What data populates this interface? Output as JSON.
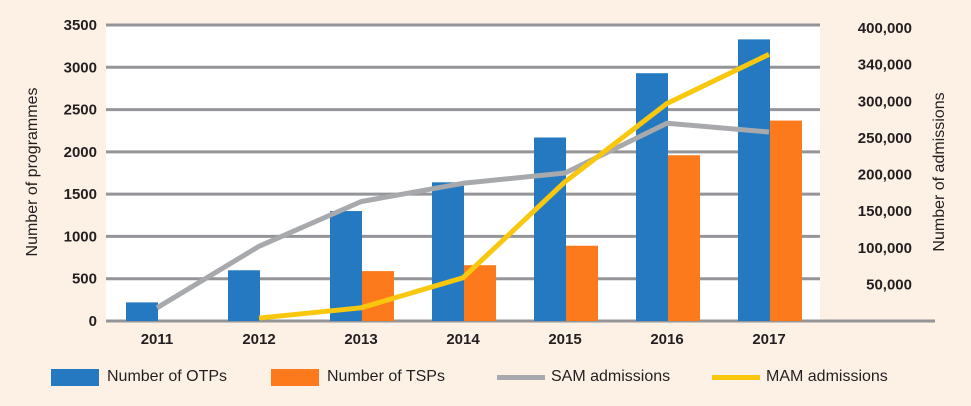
{
  "chart_data": {
    "type": "bar",
    "categories": [
      "2011",
      "2012",
      "2013",
      "2014",
      "2015",
      "2016",
      "2017"
    ],
    "series": [
      {
        "name": "Number of OTPs",
        "type": "bar",
        "axis": "left",
        "color": "#2479c0",
        "values": [
          220,
          600,
          1300,
          1640,
          2170,
          2930,
          3330
        ]
      },
      {
        "name": "Number of TSPs",
        "type": "bar",
        "axis": "left",
        "color": "#fc7a1b",
        "values": [
          null,
          null,
          590,
          660,
          890,
          1960,
          2370
        ]
      },
      {
        "name": "SAM admissions",
        "type": "line",
        "axis": "right",
        "color": "#a7a9ac",
        "values": [
          18000,
          102000,
          163000,
          188000,
          202000,
          270000,
          258000
        ]
      },
      {
        "name": "MAM admissions",
        "type": "line",
        "axis": "right",
        "color": "#f9c80e",
        "values": [
          null,
          4000,
          18000,
          59000,
          190000,
          297000,
          364000
        ]
      }
    ],
    "ylabel": "Number of programmes",
    "ylabel_right": "Number of admissions",
    "ylim": [
      0,
      3500
    ],
    "ylim_right": [
      0,
      400000
    ],
    "yticks": [
      "0",
      "500",
      "1000",
      "1500",
      "2000",
      "2500",
      "3000",
      "3500"
    ],
    "yticks_right": [
      "50,000",
      "100,000",
      "150,000",
      "200,000",
      "250,000",
      "300,000",
      "340,000",
      "400,000"
    ],
    "grid": true,
    "legend_position": "bottom"
  }
}
